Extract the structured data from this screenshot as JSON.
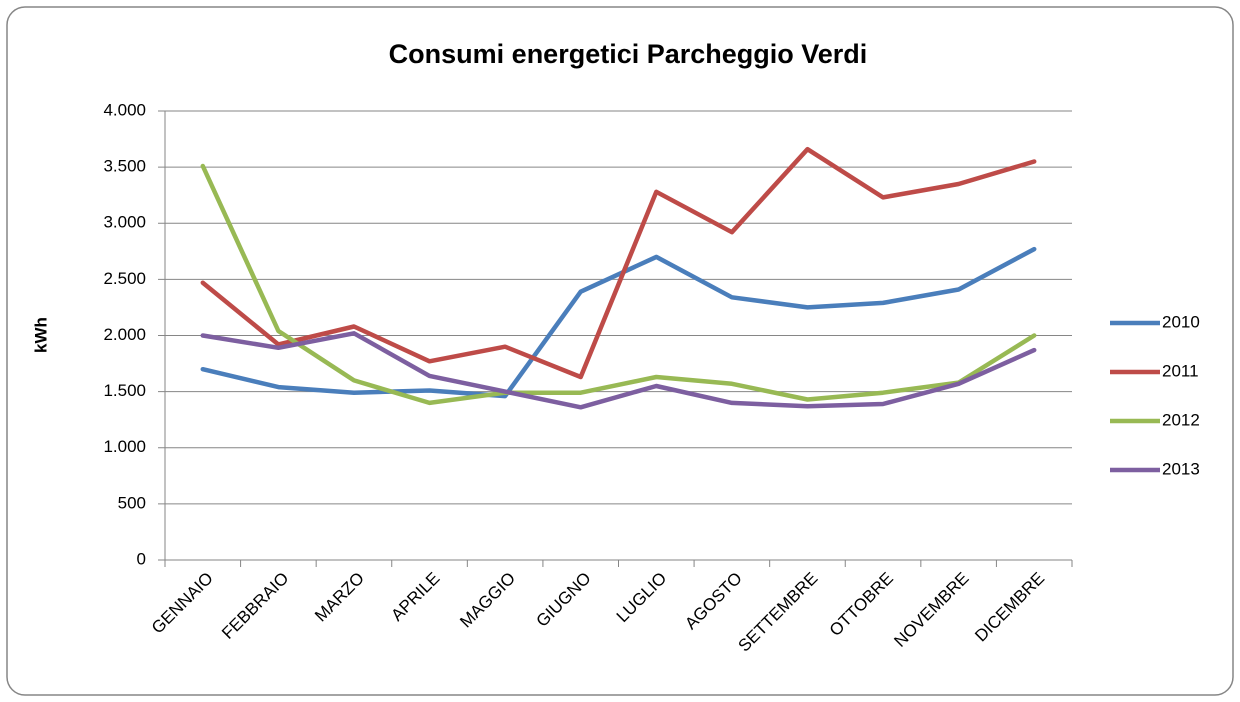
{
  "chart_data": {
    "type": "line",
    "title": "Consumi energetici Parcheggio Verdi",
    "y_label": "kWh",
    "categories": [
      "GENNAIO",
      "FEBBRAIO",
      "MARZO",
      "APRILE",
      "MAGGIO",
      "GIUGNO",
      "LUGLIO",
      "AGOSTO",
      "SETTEMBRE",
      "OTTOBRE",
      "NOVEMBRE",
      "DICEMBRE"
    ],
    "series": [
      {
        "name": "2010",
        "color": "#4a7ebb",
        "values": [
          1700,
          1540,
          1490,
          1510,
          1460,
          2390,
          2700,
          2340,
          2250,
          2290,
          2410,
          2770
        ]
      },
      {
        "name": "2011",
        "color": "#be4b48",
        "values": [
          2470,
          1920,
          2080,
          1770,
          1900,
          1630,
          3280,
          2920,
          3660,
          3230,
          3350,
          3550
        ]
      },
      {
        "name": "2012",
        "color": "#98b954",
        "values": [
          3510,
          2040,
          1600,
          1400,
          1490,
          1490,
          1630,
          1570,
          1430,
          1490,
          1580,
          2000
        ]
      },
      {
        "name": "2013",
        "color": "#7d5fa0",
        "values": [
          2000,
          1890,
          2020,
          1640,
          1500,
          1360,
          1550,
          1400,
          1370,
          1390,
          1570,
          1870
        ]
      }
    ],
    "ylim": [
      0,
      4000
    ],
    "yticks": [
      0,
      500,
      {
        "value": 1000,
        "label": "1.000"
      },
      {
        "value": 1500,
        "label": "1.500"
      },
      {
        "value": 2000,
        "label": "2.000"
      },
      {
        "value": 2500,
        "label": "2.500"
      },
      {
        "value": 3000,
        "label": "3.000"
      },
      {
        "value": 3500,
        "label": "3.500"
      },
      {
        "value": 4000,
        "label": "4.000"
      }
    ],
    "grid": true,
    "legend": "right"
  }
}
